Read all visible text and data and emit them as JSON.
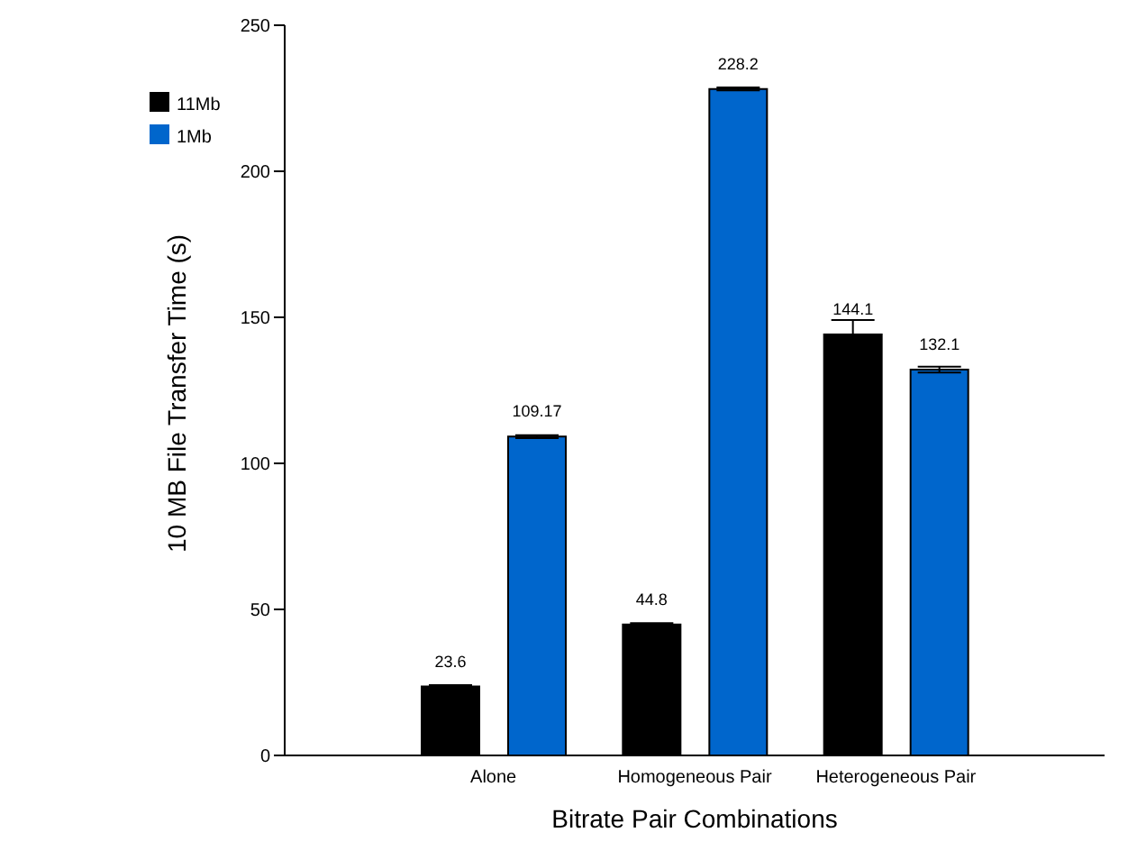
{
  "chart_data": {
    "type": "bar",
    "xlabel": "Bitrate Pair Combinations",
    "ylabel": "10 MB File Transfer Time (s)",
    "categories": [
      "Alone",
      "Homogeneous Pair",
      "Heterogeneous Pair"
    ],
    "series": [
      {
        "name": "11Mb",
        "color": "#000000",
        "values": [
          23.6,
          44.8,
          144.1
        ],
        "errors": [
          0.5,
          0.5,
          5
        ]
      },
      {
        "name": "1Mb",
        "color": "#0066cc",
        "values": [
          109.17,
          228.2,
          132.1
        ],
        "errors": [
          0.5,
          0.5,
          1
        ]
      }
    ],
    "ylim": [
      0,
      250
    ],
    "yticks": [
      0,
      50,
      100,
      150,
      200,
      250
    ],
    "grid": false,
    "legend": "top left",
    "data_labels": true
  }
}
